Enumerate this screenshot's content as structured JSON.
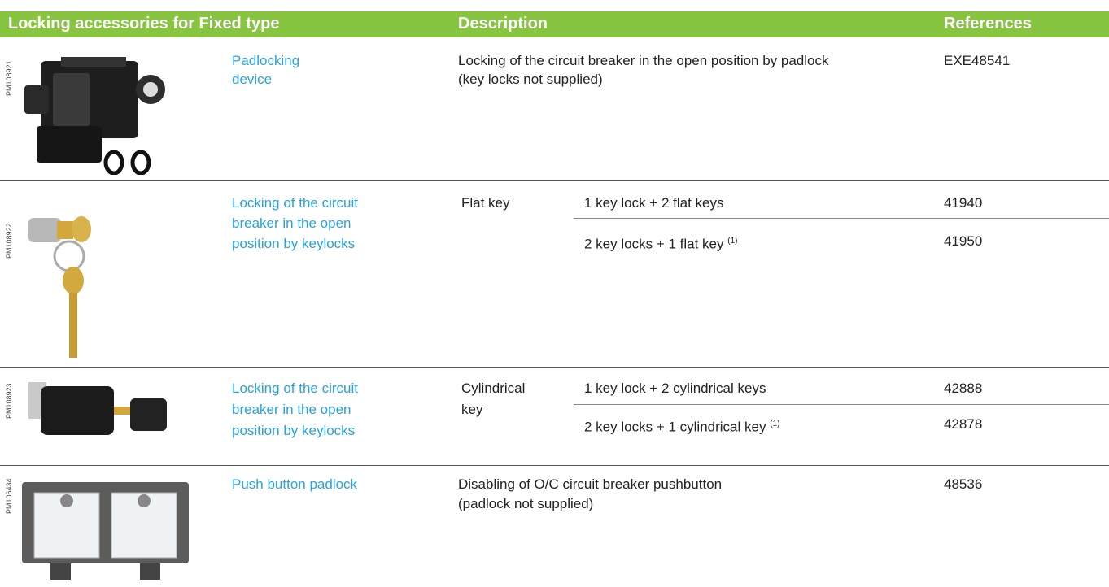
{
  "header": {
    "columns": [
      "Locking accessories for Fixed type",
      "Description",
      "References"
    ]
  },
  "rows": [
    {
      "image_code": "PM108921",
      "name": [
        "Padlocking",
        "device"
      ],
      "description": [
        "Locking of the circuit breaker in the open position by padlock",
        "(key locks not supplied)"
      ],
      "reference": "EXE48541"
    },
    {
      "image_code": "PM108922",
      "name": [
        "Locking of the circuit",
        "breaker in the open",
        "position by keylocks"
      ],
      "key_type": [
        "Flat key"
      ],
      "options": [
        {
          "text": "1 key lock + 2 flat keys",
          "reference": "41940"
        },
        {
          "text": "2 key locks + 1 flat key",
          "note": "(1)",
          "reference": "41950"
        }
      ]
    },
    {
      "image_code": "PM108923",
      "name": [
        "Locking of the circuit",
        "breaker in the open",
        "position by keylocks"
      ],
      "key_type": [
        "Cylindrical",
        "key"
      ],
      "options": [
        {
          "text": "1 key lock + 2 cylindrical keys",
          "reference": "42888"
        },
        {
          "text": "2 key locks + 1 cylindrical key",
          "note": "(1)",
          "reference": "42878"
        }
      ]
    },
    {
      "image_code": "PM106434",
      "name": [
        "Push button padlock"
      ],
      "description": [
        "Disabling of O/C circuit breaker pushbutton",
        "(padlock not supplied)"
      ],
      "reference": "48536"
    }
  ]
}
